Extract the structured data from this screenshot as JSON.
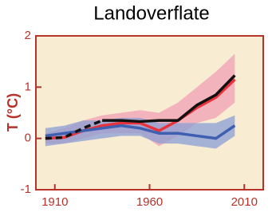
{
  "chart_data": {
    "type": "line",
    "title": "Landoverflate",
    "y_label": "T (°C)",
    "x": [
      1905,
      1915,
      1925,
      1935,
      1945,
      1955,
      1965,
      1975,
      1985,
      1995,
      2005
    ],
    "xlim": [
      1900,
      2020
    ],
    "xticks": [
      1910,
      1960,
      2010
    ],
    "ylim": [
      -1,
      2
    ],
    "yticks": [
      -1,
      0,
      1,
      2
    ],
    "background": "#f8ecd2",
    "axis_color": "#b5332b",
    "series": [
      {
        "color": "#e8323c",
        "band_color": "#f2a0b4",
        "values": [
          0,
          0.02,
          0.15,
          0.25,
          0.3,
          0.3,
          0.15,
          0.35,
          0.6,
          0.8,
          1.15
        ],
        "upper": [
          0.1,
          0.2,
          0.35,
          0.45,
          0.5,
          0.55,
          0.5,
          0.7,
          1.0,
          1.3,
          1.65
        ],
        "lower": [
          -0.1,
          -0.1,
          0,
          0.1,
          0.1,
          0.1,
          -0.15,
          0.05,
          0.3,
          0.4,
          0.7
        ]
      },
      {
        "color": "#3f5fb0",
        "band_color": "#8b9fd6",
        "values": [
          0.05,
          0.1,
          0.15,
          0.2,
          0.25,
          0.2,
          0.1,
          0.1,
          0.05,
          0,
          0.25
        ],
        "upper": [
          0.2,
          0.25,
          0.35,
          0.35,
          0.4,
          0.4,
          0.3,
          0.3,
          0.3,
          0.3,
          0.45
        ],
        "lower": [
          -0.15,
          -0.1,
          -0.05,
          0,
          0.05,
          0.05,
          -0.1,
          -0.1,
          -0.15,
          -0.2,
          0.05
        ]
      },
      {
        "color": "#111111",
        "dashed": true,
        "values": [
          0,
          0.02,
          0.2,
          0.35,
          null,
          null,
          null,
          null,
          null,
          null,
          null
        ]
      },
      {
        "color": "#111111",
        "values": [
          null,
          null,
          null,
          0.35,
          0.35,
          0.33,
          0.35,
          0.35,
          0.65,
          0.85,
          1.23
        ]
      }
    ]
  }
}
